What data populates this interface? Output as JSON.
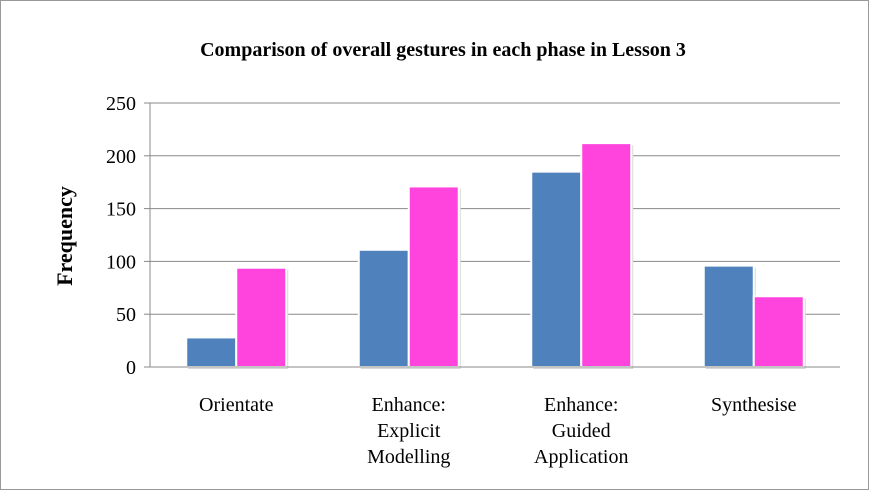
{
  "chart_data": {
    "type": "bar",
    "title": "Comparison of overall gestures in each phase in Lesson 3",
    "y_label": "Frequency",
    "categories": [
      "Orientate",
      "Enhance: Explicit Modelling",
      "Enhance: Guided Application",
      "Synthesise"
    ],
    "series": [
      {
        "color": "#4f81bd",
        "values": [
          28,
          111,
          185,
          96
        ]
      },
      {
        "color": "#ff44dd",
        "values": [
          94,
          171,
          212,
          67
        ]
      }
    ],
    "ylim": [
      0,
      250
    ],
    "yticks": [
      0,
      50,
      100,
      150,
      200,
      250
    ],
    "grid": true
  }
}
